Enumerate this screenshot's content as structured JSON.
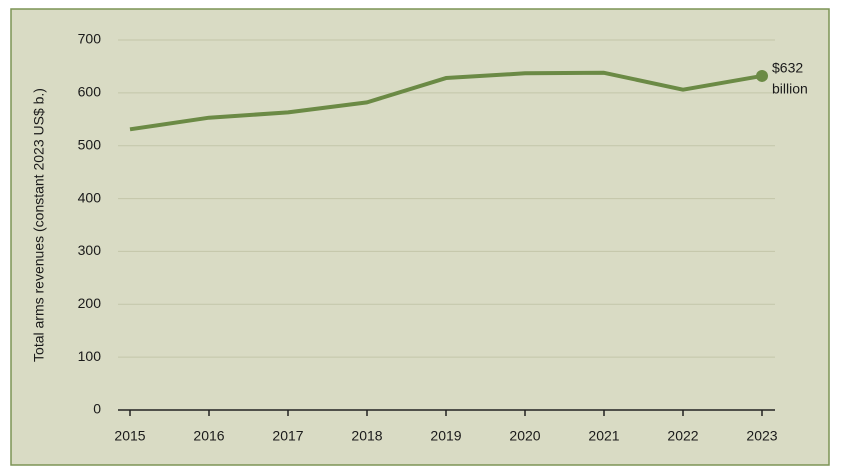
{
  "chart_data": {
    "type": "line",
    "y_label": "Total arms revenues (constant 2023 US$ b.)",
    "categories": [
      "2015",
      "2016",
      "2017",
      "2018",
      "2019",
      "2020",
      "2021",
      "2022",
      "2023"
    ],
    "values": [
      531,
      553,
      563,
      582,
      628,
      637,
      638,
      606,
      632
    ],
    "color": "#6b8a45",
    "ylim": [
      0,
      700
    ],
    "yticks": [
      0,
      100,
      200,
      300,
      400,
      500,
      600,
      700
    ],
    "grid": true,
    "annotation": [
      "$632",
      "billion"
    ]
  }
}
